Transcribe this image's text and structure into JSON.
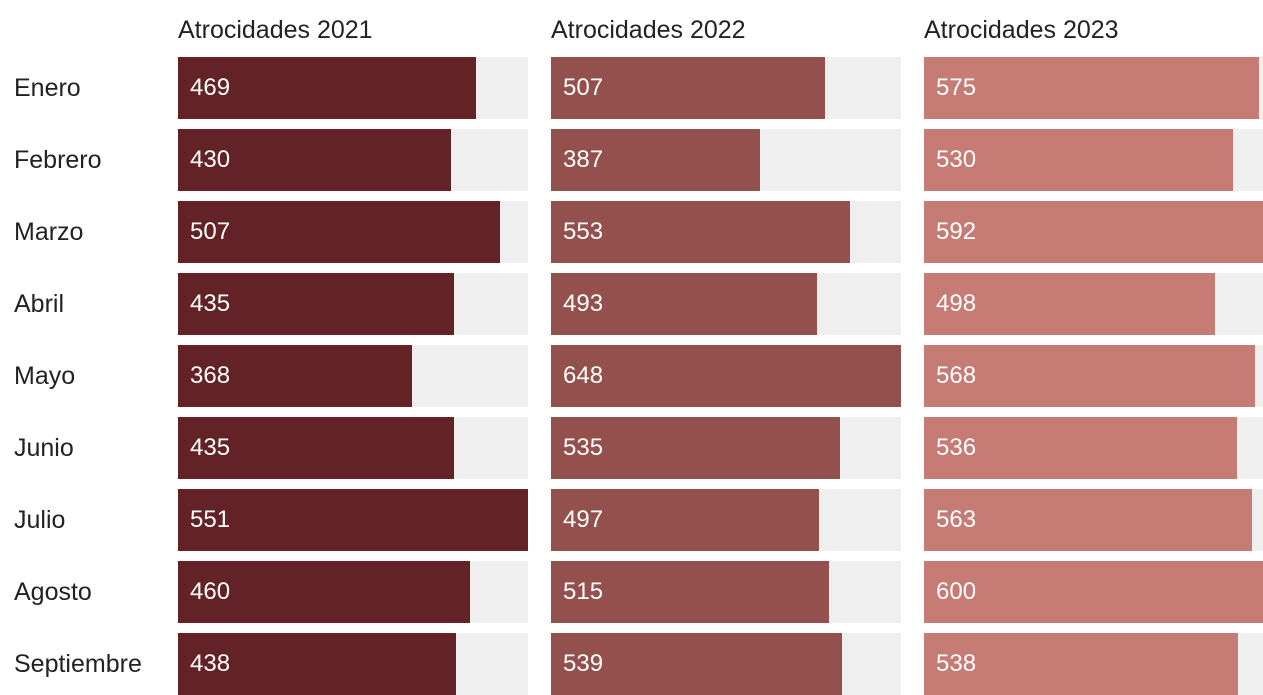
{
  "chart_data": {
    "type": "bar",
    "orientation": "horizontal",
    "layout": "small-multiples",
    "categories": [
      "Enero",
      "Febrero",
      "Marzo",
      "Abril",
      "Mayo",
      "Junio",
      "Julio",
      "Agosto",
      "Septiembre"
    ],
    "series": [
      {
        "name": "Atrocidades 2021",
        "color": "#632326",
        "max": 551,
        "values": [
          469,
          430,
          507,
          435,
          368,
          435,
          551,
          460,
          438
        ]
      },
      {
        "name": "Atrocidades 2022",
        "color": "#94504d",
        "max": 648,
        "values": [
          507,
          387,
          553,
          493,
          648,
          535,
          497,
          515,
          539
        ]
      },
      {
        "name": "Atrocidades 2023",
        "color": "#c67b74",
        "max": 600,
        "values": [
          575,
          530,
          592,
          498,
          568,
          536,
          563,
          600,
          538
        ]
      }
    ],
    "track_color": "#efefef",
    "grid": false,
    "legend": "none"
  }
}
